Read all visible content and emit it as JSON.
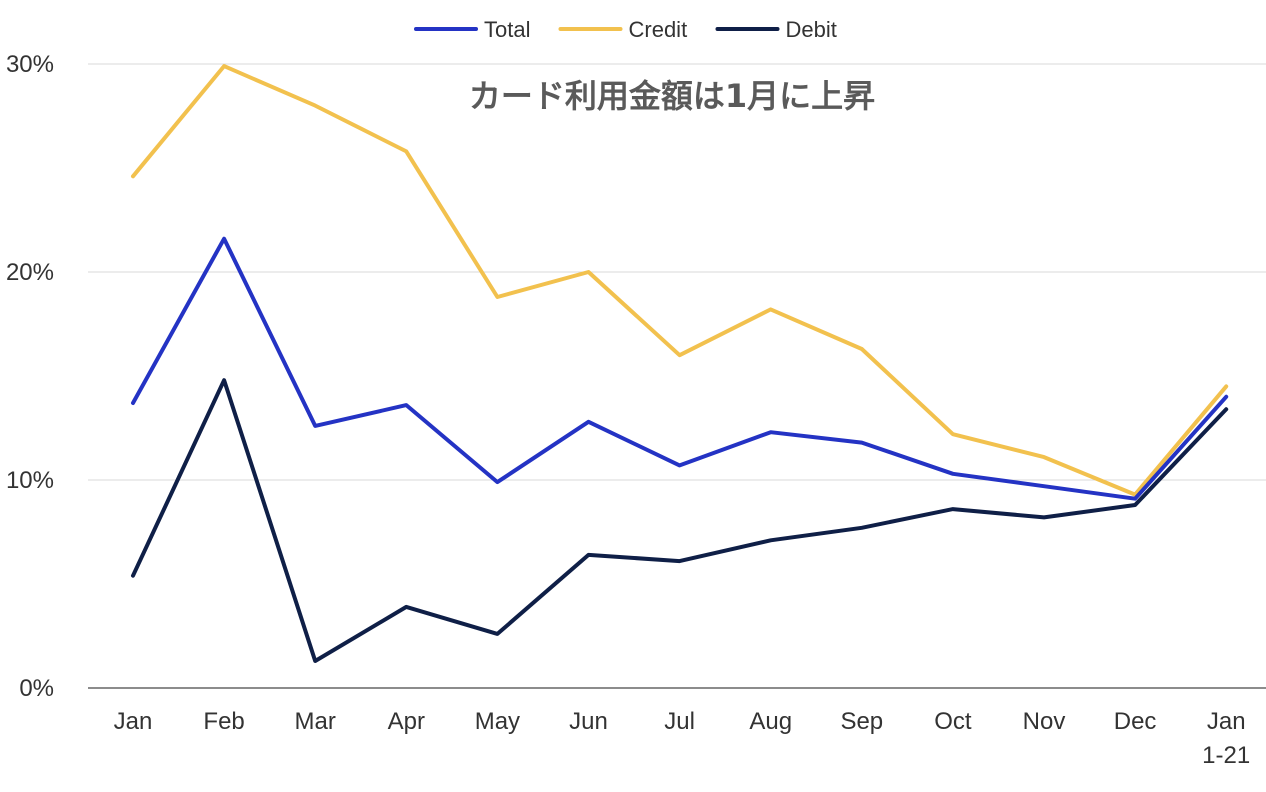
{
  "chart_data": {
    "type": "line",
    "title": "カード利用金額は1月に上昇",
    "xlabel": "",
    "ylabel": "",
    "categories": [
      "Jan",
      "Feb",
      "Mar",
      "Apr",
      "May",
      "Jun",
      "Jul",
      "Aug",
      "Sep",
      "Oct",
      "Nov",
      "Dec",
      "Jan\n1-21"
    ],
    "ylim": [
      0,
      30
    ],
    "yticks": [
      0,
      10,
      20,
      30
    ],
    "ytick_labels": [
      "0%",
      "10%",
      "20%",
      "30%"
    ],
    "grid": true,
    "legend_position": "top-center",
    "series": [
      {
        "name": "Total",
        "color": "#2433c4",
        "values": [
          13.7,
          21.6,
          12.6,
          13.6,
          9.9,
          12.8,
          10.7,
          12.3,
          11.8,
          10.3,
          9.7,
          9.1,
          14.0
        ]
      },
      {
        "name": "Credit",
        "color": "#f2c14e",
        "values": [
          24.6,
          29.9,
          28.0,
          25.8,
          18.8,
          20.0,
          16.0,
          18.2,
          16.3,
          12.2,
          11.1,
          9.3,
          14.5
        ]
      },
      {
        "name": "Debit",
        "color": "#0f1f47",
        "values": [
          5.4,
          14.8,
          1.3,
          3.9,
          2.6,
          6.4,
          6.1,
          7.1,
          7.7,
          8.6,
          8.2,
          8.8,
          13.4
        ]
      }
    ]
  }
}
